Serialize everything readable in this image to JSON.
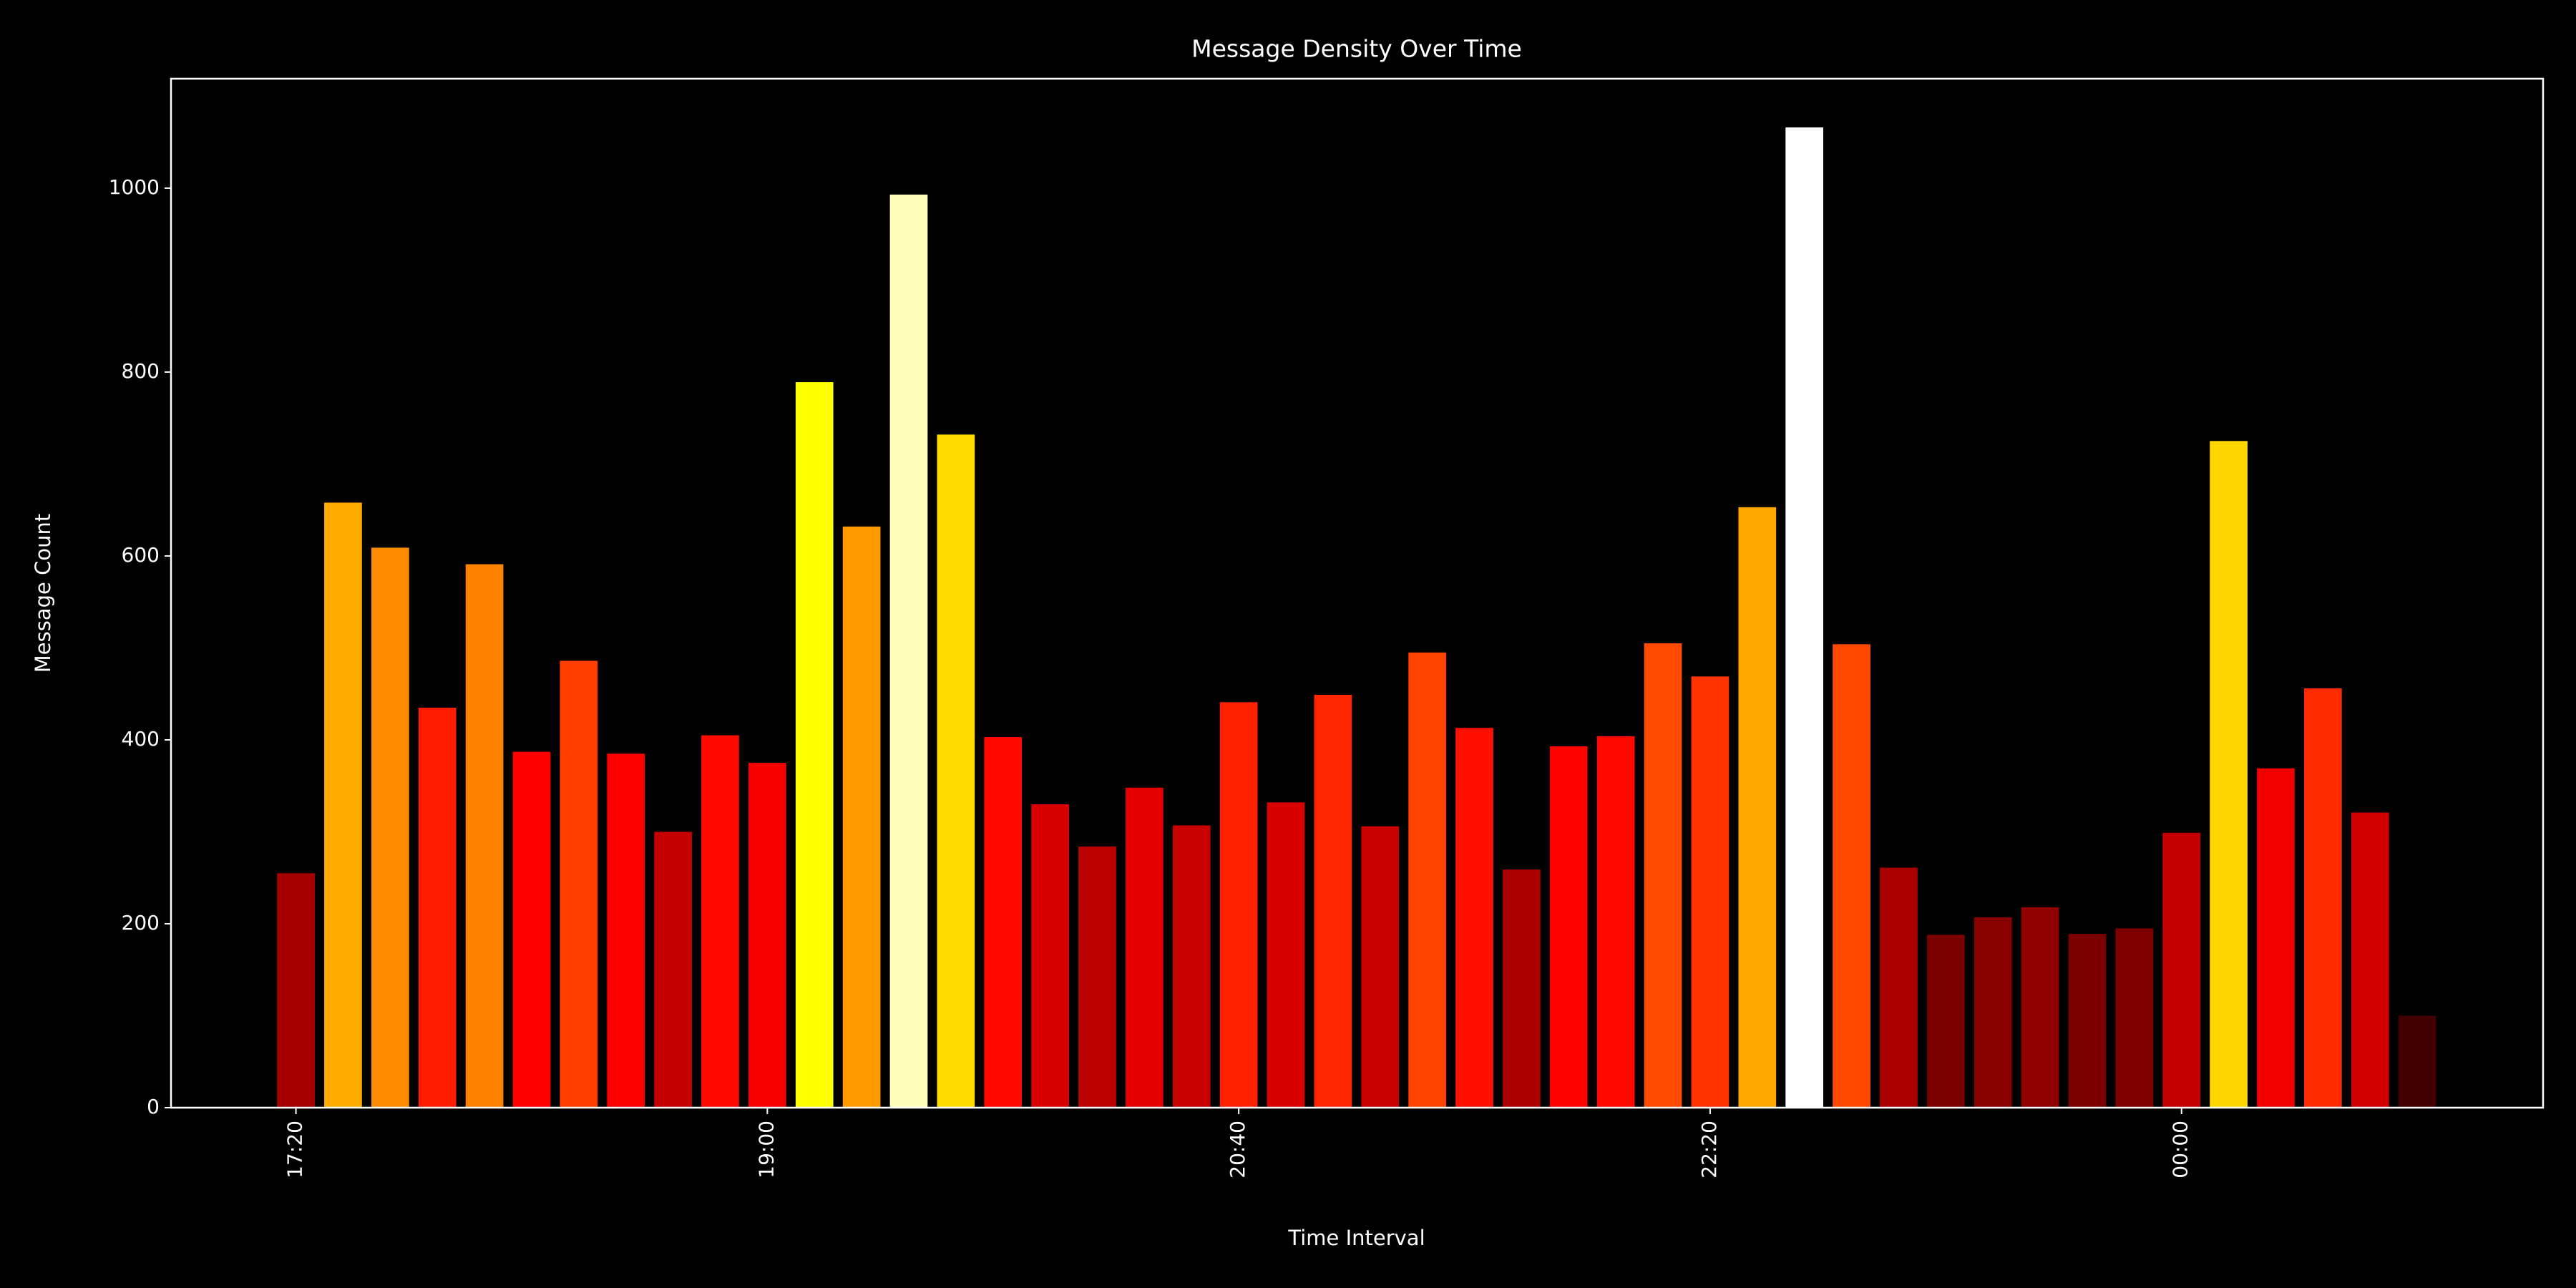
{
  "chart_data": {
    "type": "bar",
    "title": "Message Density Over Time",
    "x_label": "Time Interval",
    "y_label": "Message Count",
    "categories": [
      "17:20",
      null,
      null,
      null,
      null,
      null,
      null,
      null,
      null,
      null,
      "19:00",
      null,
      null,
      null,
      null,
      null,
      null,
      null,
      null,
      null,
      "20:40",
      null,
      null,
      null,
      null,
      null,
      null,
      null,
      null,
      null,
      "22:20",
      null,
      null,
      null,
      null,
      null,
      null,
      null,
      null,
      null,
      "00:00",
      null,
      null,
      null,
      null,
      null
    ],
    "values": [
      255,
      658,
      609,
      435,
      591,
      387,
      486,
      385,
      300,
      405,
      375,
      789,
      632,
      993,
      732,
      403,
      330,
      284,
      348,
      307,
      441,
      332,
      449,
      306,
      495,
      413,
      259,
      393,
      404,
      505,
      469,
      653,
      1066,
      504,
      261,
      188,
      207,
      218,
      189,
      195,
      299,
      725,
      369,
      456,
      321,
      100
    ],
    "colors": [
      "#a70000",
      "#ffab00",
      "#ff8c00",
      "#ff1d00",
      "#ff8100",
      "#fe0000",
      "#ff3e00",
      "#fc0000",
      "#c50000",
      "#ff0a00",
      "#f60000",
      "#ffff00",
      "#ff9b00",
      "#ffffbc",
      "#ffdb00",
      "#ff0900",
      "#d80000",
      "#ba0000",
      "#e40000",
      "#c90000",
      "#ff2100",
      "#d90000",
      "#ff2600",
      "#c80000",
      "#ff4400",
      "#ff0f00",
      "#aa0000",
      "#ff0300",
      "#ff0900",
      "#ff4a00",
      "#ff3300",
      "#ffa800",
      "#ffffff",
      "#ff4900",
      "#ab0000",
      "#7b0000",
      "#880000",
      "#8f0000",
      "#7c0000",
      "#800000",
      "#c40000",
      "#ffd600",
      "#f20000",
      "#ff2b00",
      "#d20000",
      "#420000"
    ],
    "ylim": [
      0,
      1119
    ],
    "yticks": [
      0,
      200,
      400,
      600,
      800,
      1000
    ],
    "grid": false
  }
}
